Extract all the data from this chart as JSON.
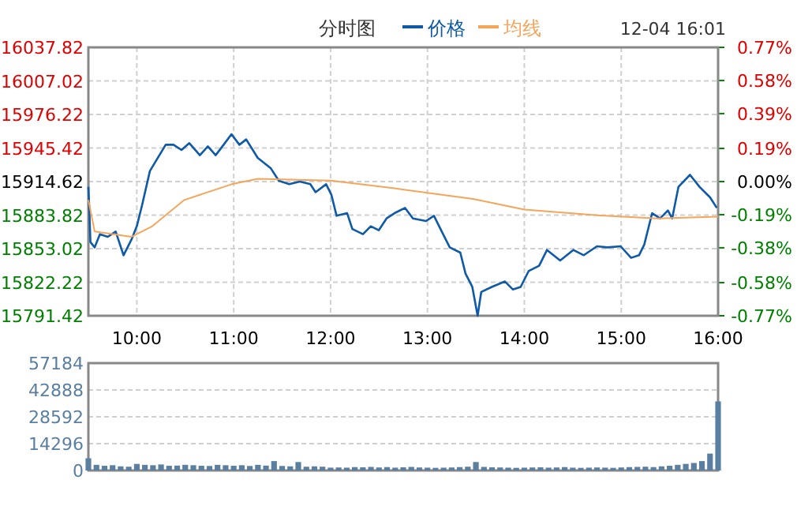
{
  "chart_data": [
    {
      "type": "line",
      "title": "分时图",
      "annotations": [
        "12-04 16:01"
      ],
      "legend": "top",
      "grid": true,
      "xlim": [
        9.5,
        16
      ],
      "xticks": [
        {
          "value": 10,
          "label": "10:00"
        },
        {
          "value": 11,
          "label": "11:00"
        },
        {
          "value": 12,
          "label": "12:00"
        },
        {
          "value": 13,
          "label": "13:00"
        },
        {
          "value": 14,
          "label": "14:00"
        },
        {
          "value": 15,
          "label": "15:00"
        },
        {
          "value": 16,
          "label": "16:00"
        }
      ],
      "ylim": [
        15791.42,
        16037.82
      ],
      "yticks": [
        15791.42,
        15822.22,
        15853.02,
        15883.82,
        15914.62,
        15945.42,
        15976.22,
        16007.02,
        16037.82
      ],
      "y2lim": [
        -0.77,
        0.77
      ],
      "y2ticks": [
        {
          "value": -0.77,
          "label": "-0.77%"
        },
        {
          "value": -0.58,
          "label": "-0.58%"
        },
        {
          "value": -0.38,
          "label": "-0.38%"
        },
        {
          "value": -0.19,
          "label": "-0.19%"
        },
        {
          "value": 0,
          "label": "0.00%"
        },
        {
          "value": 0.19,
          "label": "0.19%"
        },
        {
          "value": 0.39,
          "label": "0.39%"
        },
        {
          "value": 0.58,
          "label": "0.58%"
        },
        {
          "value": 0.77,
          "label": "0.77%"
        }
      ],
      "series": [
        {
          "name": "价格",
          "color": "#0f5aa8",
          "x": [
            9.5,
            9.511,
            9.521,
            9.565,
            9.619,
            9.7,
            9.782,
            9.863,
            9.945,
            10.0,
            10.054,
            10.135,
            10.217,
            10.298,
            10.379,
            10.461,
            10.542,
            10.651,
            10.733,
            10.814,
            10.896,
            10.977,
            11.059,
            11.129,
            11.248,
            11.384,
            11.466,
            11.574,
            11.682,
            11.791,
            11.845,
            11.954,
            12.008,
            12.062,
            12.171,
            12.225,
            12.334,
            12.415,
            12.497,
            12.578,
            12.66,
            12.769,
            12.85,
            12.985,
            13.067,
            13.148,
            13.23,
            13.339,
            13.393,
            13.463,
            13.518,
            13.555,
            13.664,
            13.8,
            13.881,
            13.962,
            14.044,
            14.153,
            14.234,
            14.37,
            14.505,
            14.614,
            14.749,
            14.858,
            14.994,
            15.102,
            15.184,
            15.238,
            15.319,
            15.401,
            15.482,
            15.526,
            15.591,
            15.71,
            15.808,
            15.917,
            15.987
          ],
          "values": [
            15909.8,
            15885.6,
            15859.1,
            15854.2,
            15866.3,
            15863.9,
            15868.7,
            15847,
            15861.4,
            15873.6,
            15892.9,
            15924.3,
            15936.4,
            15948.4,
            15948.4,
            15943.6,
            15949.9,
            15938.8,
            15946.9,
            15938.8,
            15948.4,
            15958.1,
            15948.4,
            15953.3,
            15936.4,
            15926.7,
            15915.4,
            15912.2,
            15914.6,
            15912.2,
            15904.9,
            15912.2,
            15902.6,
            15883.2,
            15885.6,
            15871.1,
            15866.3,
            15873.6,
            15869.9,
            15880.8,
            15885.6,
            15890.4,
            15880.8,
            15878.4,
            15883.2,
            15868.7,
            15854.2,
            15849.4,
            15830.1,
            15817.9,
            15791.42,
            15813.2,
            15817.9,
            15822.9,
            15815.6,
            15817.9,
            15832.4,
            15837.3,
            15851.8,
            15842.1,
            15851.8,
            15847,
            15855.2,
            15854.2,
            15855.2,
            15844.6,
            15847,
            15856.7,
            15885.6,
            15880.8,
            15888.1,
            15880.8,
            15909.8,
            15920.8,
            15909.8,
            15900.1,
            15890.4
          ]
        },
        {
          "name": "均线",
          "color": "#f5a55a",
          "x": [
            9.5,
            9.565,
            9.945,
            10.16,
            10.49,
            10.98,
            11.25,
            12.0,
            12.66,
            13.47,
            14.0,
            14.83,
            15.37,
            16.0
          ],
          "values": [
            15897.7,
            15868.7,
            15863.9,
            15873.6,
            15897.7,
            15912.2,
            15917.1,
            15915.6,
            15908.4,
            15898.7,
            15888.9,
            15883.2,
            15880.8,
            15882.3
          ]
        }
      ]
    },
    {
      "type": "bar",
      "color": "#5a7fa0",
      "grid": true,
      "tick_labels": "y",
      "xlim": [
        9.5,
        16
      ],
      "ylim": [
        0,
        57184
      ],
      "yticks": [
        0,
        14296,
        28592,
        42888,
        57184
      ],
      "x": [
        9.5,
        9.5833,
        9.6667,
        9.75,
        9.8333,
        9.9167,
        10,
        10.0833,
        10.1667,
        10.25,
        10.3333,
        10.4167,
        10.5,
        10.5833,
        10.6667,
        10.75,
        10.8333,
        10.9167,
        11,
        11.0833,
        11.1667,
        11.25,
        11.3333,
        11.4167,
        11.5,
        11.5833,
        11.6667,
        11.75,
        11.8333,
        11.9167,
        12,
        12.0833,
        12.1667,
        12.25,
        12.3333,
        12.4167,
        12.5,
        12.5833,
        12.6667,
        12.75,
        12.8333,
        12.9167,
        13,
        13.0833,
        13.1667,
        13.25,
        13.3333,
        13.4167,
        13.5,
        13.5833,
        13.6667,
        13.75,
        13.8333,
        13.9167,
        14,
        14.0833,
        14.1667,
        14.25,
        14.3333,
        14.4167,
        14.5,
        14.5833,
        14.6667,
        14.75,
        14.8333,
        14.9167,
        15,
        15.0833,
        15.1667,
        15.25,
        15.3333,
        15.4167,
        15.5,
        15.5833,
        15.6667,
        15.75,
        15.8333,
        15.9167,
        16
      ],
      "values": [
        6500,
        3000,
        2500,
        2800,
        2200,
        2000,
        3500,
        3000,
        2800,
        3200,
        2500,
        2600,
        3000,
        2800,
        2500,
        2400,
        3000,
        2800,
        2500,
        2800,
        2400,
        3000,
        2600,
        5000,
        2400,
        2200,
        4500,
        2000,
        2200,
        2000,
        1500,
        1600,
        1500,
        1800,
        1700,
        1900,
        1600,
        1800,
        1500,
        1700,
        1900,
        1600,
        1500,
        1400,
        1500,
        1600,
        1800,
        2000,
        4500,
        1900,
        1700,
        1600,
        1500,
        1400,
        1500,
        1600,
        1700,
        1500,
        1600,
        1800,
        1500,
        1400,
        1500,
        1600,
        1500,
        1400,
        1600,
        1800,
        1900,
        2000,
        1800,
        2200,
        2500,
        3000,
        3500,
        4000,
        5000,
        9000,
        36800
      ]
    }
  ]
}
